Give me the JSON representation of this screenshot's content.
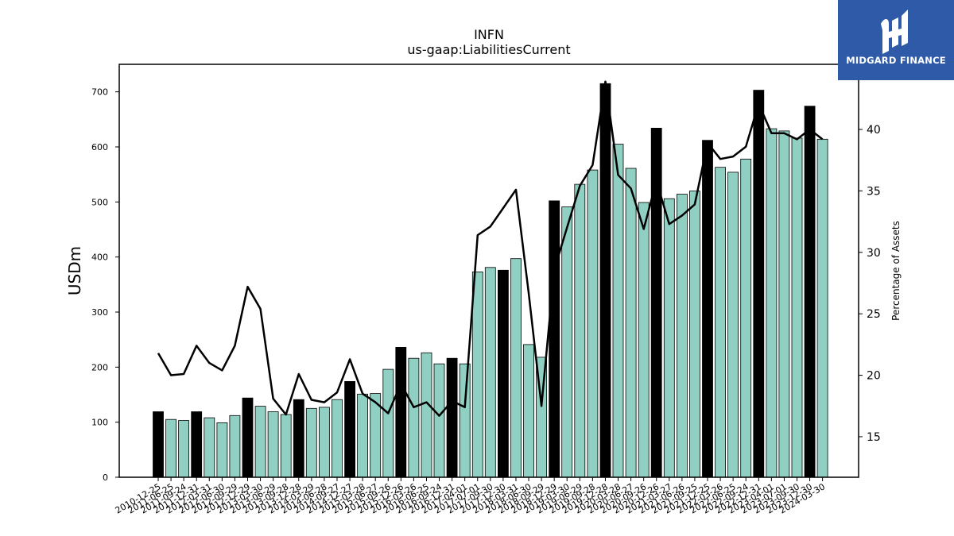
{
  "title": "INFN",
  "subtitle": "us-gaap:LiabilitiesCurrent",
  "logo": {
    "text": "MIDGARD FINANCE",
    "icon": "midgard-logo-icon"
  },
  "colors": {
    "quarter_bar": "#8fd0c2",
    "annual_bar": "#000000",
    "line": "#000000"
  },
  "chart_data": {
    "type": "bar",
    "ylabel": "USDm",
    "y2label": "Percentage of Assets",
    "ylim": [
      0,
      750
    ],
    "y2lim": [
      11.7,
      45.3
    ],
    "yticks": [
      0,
      100,
      200,
      300,
      400,
      500,
      600,
      700
    ],
    "y2ticks": [
      15,
      20,
      25,
      30,
      35,
      40
    ],
    "grid": false,
    "categories": [
      "2010-12-25",
      "2011-06-25",
      "2011-09-24",
      "2011-12-31",
      "2012-03-31",
      "2012-06-30",
      "2012-09-29",
      "2012-12-29",
      "2013-03-30",
      "2013-06-29",
      "2013-09-28",
      "2013-12-28",
      "2014-03-29",
      "2014-06-28",
      "2014-09-27",
      "2014-12-27",
      "2015-03-28",
      "2015-06-27",
      "2015-09-26",
      "2015-12-26",
      "2016-03-26",
      "2016-06-25",
      "2016-09-24",
      "2016-12-31",
      "2017-04-01",
      "2017-07-01",
      "2017-09-30",
      "2017-12-30",
      "2018-03-31",
      "2018-06-30",
      "2018-09-29",
      "2018-12-29",
      "2019-03-30",
      "2019-06-29",
      "2019-09-28",
      "2019-12-28",
      "2020-03-28",
      "2020-06-27",
      "2020-09-26",
      "2020-12-26",
      "2021-03-27",
      "2021-06-26",
      "2021-09-25",
      "2021-12-25",
      "2022-03-26",
      "2022-06-25",
      "2022-09-24",
      "2022-12-31",
      "2023-04-01",
      "2023-07-01",
      "2023-09-30",
      "2023-12-30",
      "2024-03-30"
    ],
    "visible_x_labels": [
      "2010-12-25",
      "2011-06-25",
      "2011-09-24",
      "2011-12-31",
      "2012-03-31",
      "2012-06-30",
      "2012-09-29",
      "2012-12-29",
      "2013-03-30",
      "2013-06-29",
      "2013-09-28",
      "2013-12-28",
      "2014-03-29",
      "2014-06-28",
      "2014-09-27",
      "2014-12-27",
      "2015-03-28",
      "2015-06-27",
      "2015-09-26",
      "2015-12-26",
      "2016-03-26",
      "2016-06-25",
      "2016-09-24",
      "2016-12-31",
      "2017-04-01",
      "2017-07-01",
      "2017-09-30",
      "2017-12-30",
      "2018-03-31",
      "2018-06-30",
      "2018-09-29",
      "2018-12-29",
      "2019-03-30",
      "2019-06-29",
      "2019-09-28",
      "2019-12-28",
      "2020-03-28",
      "2020-06-27",
      "2020-09-26",
      "2020-12-26",
      "2021-03-27",
      "2021-06-26",
      "2021-09-25",
      "2021-12-25",
      "2022-03-26",
      "2022-06-25",
      "2022-09-24",
      "2022-12-31",
      "2023-04-01",
      "2023-07-01",
      "2023-09-30",
      "2023-12-30",
      "2024-03-30"
    ],
    "values": [
      119,
      105,
      103,
      119,
      108,
      99,
      112,
      144,
      129,
      119,
      114,
      141,
      125,
      127,
      141,
      174,
      151,
      152,
      196,
      236,
      216,
      226,
      206,
      216,
      206,
      373,
      381,
      376,
      397,
      241,
      218,
      502,
      491,
      532,
      558,
      715,
      605,
      561,
      499,
      634,
      506,
      514,
      520,
      612,
      563,
      554,
      578,
      703,
      633,
      629,
      616,
      674,
      614
    ],
    "annual": [
      true,
      false,
      false,
      true,
      false,
      false,
      false,
      true,
      false,
      false,
      false,
      true,
      false,
      false,
      false,
      true,
      false,
      false,
      false,
      true,
      false,
      false,
      false,
      true,
      false,
      false,
      false,
      true,
      false,
      false,
      false,
      true,
      false,
      false,
      false,
      true,
      false,
      false,
      false,
      true,
      false,
      false,
      false,
      true,
      false,
      false,
      false,
      true,
      false,
      false,
      false,
      true,
      false
    ],
    "series": [
      {
        "name": "Percentage of Assets",
        "axis": "right",
        "values": [
          21.8,
          20.0,
          20.1,
          22.4,
          21.0,
          20.4,
          22.4,
          27.2,
          25.4,
          18.1,
          16.8,
          20.1,
          18.0,
          17.8,
          18.6,
          21.3,
          18.5,
          17.8,
          16.9,
          19.3,
          17.4,
          17.8,
          16.7,
          17.9,
          17.4,
          31.4,
          32.1,
          33.6,
          35.1,
          26.7,
          17.5,
          28.6,
          32.0,
          35.4,
          37.1,
          43.9,
          36.3,
          35.2,
          31.9,
          35.8,
          32.3,
          33.0,
          33.9,
          38.9,
          37.6,
          37.8,
          38.6,
          42.1,
          39.7,
          39.7,
          39.2,
          40.0,
          39.2
        ]
      }
    ]
  }
}
